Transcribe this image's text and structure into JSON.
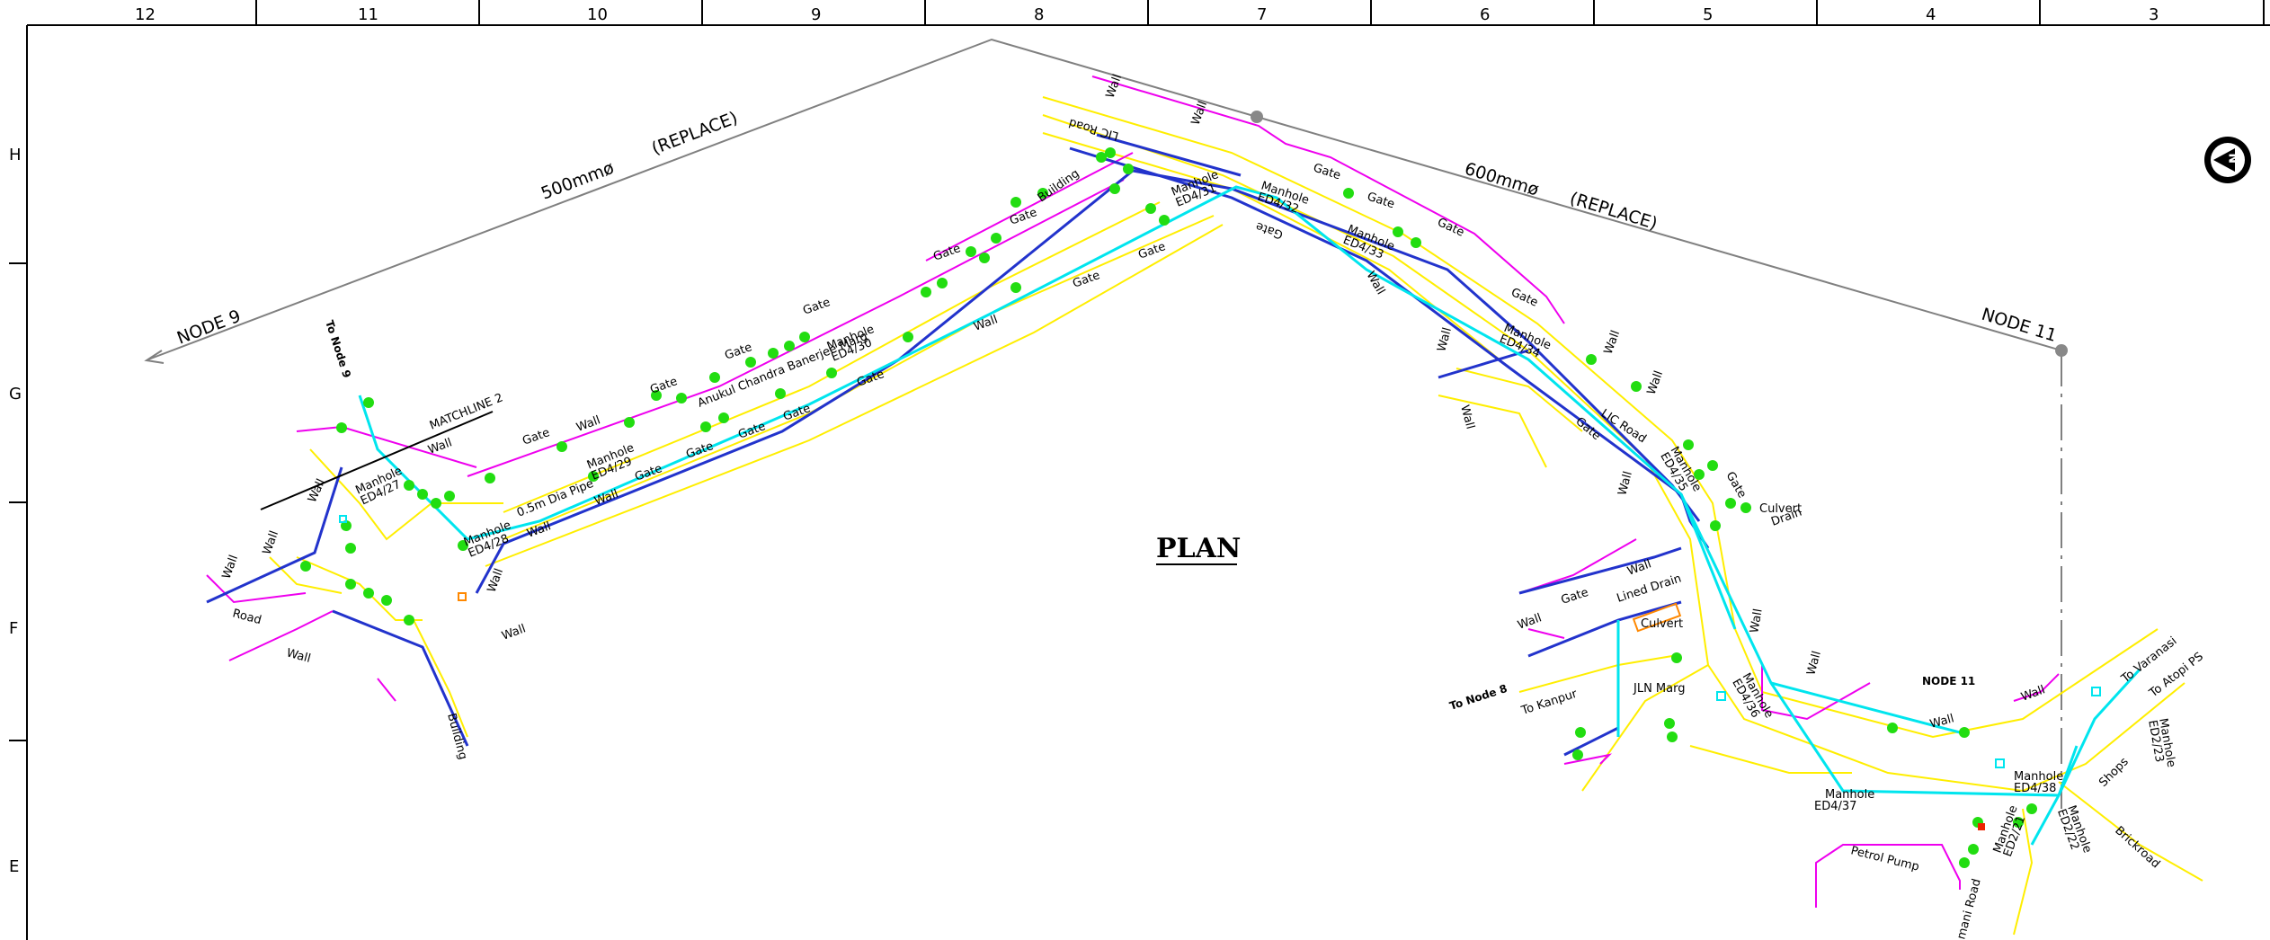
{
  "title": "PLAN",
  "grid": {
    "columns": [
      "12",
      "11",
      "10",
      "9",
      "8",
      "7",
      "6",
      "5",
      "4",
      "3"
    ],
    "rows": [
      "H",
      "G",
      "F",
      "E"
    ]
  },
  "pipes": {
    "left": {
      "dia": "500mmø",
      "note": "(REPLACE)",
      "node": "NODE 9"
    },
    "right": {
      "dia": "600mmø",
      "note": "(REPLACE)",
      "node": "NODE 11"
    }
  },
  "labels": {
    "to_node9": "To Node 9",
    "to_node8": "To Node 8",
    "matchline": "MATCHLINE 2",
    "lic_road": "LIC Road",
    "lic_road_top": "LIC Road",
    "road_name": "Anukul Chandra Banerjee Marg",
    "jln_marg": "JLN Marg",
    "to_kanpur": "To Kanpur",
    "to_varanasi": "To Varanasi",
    "to_atopi": "To Atopi PS",
    "node11_mid": "NODE 11",
    "petrol_pump": "Petrol Pump",
    "shops": "Shops",
    "brickroad": "Brickroad",
    "culvert": "Culvert",
    "culvert2": "Culvert",
    "lined_drain": "Lined Drain",
    "drain": "Drain",
    "road": "Road",
    "dia_pipe": "0.5m Dia Pipe",
    "mani_road": "mani Road",
    "building": "Building",
    "building2": "Building"
  },
  "manholes": {
    "m27": [
      "Manhole",
      "ED4/27"
    ],
    "m28": [
      "Manhole",
      "ED4/28"
    ],
    "m29": [
      "Manhole",
      "ED4/29"
    ],
    "m30": [
      "Manhole",
      "ED4/30"
    ],
    "m31": [
      "Manhole",
      "ED4/31"
    ],
    "m32": [
      "Manhole",
      "ED4/32"
    ],
    "m33": [
      "Manhole",
      "ED4/33"
    ],
    "m34": [
      "Manhole",
      "ED4/34"
    ],
    "m35": [
      "Manhole",
      "ED4/35"
    ],
    "m36": [
      "Manhole",
      "ED4/36"
    ],
    "m37": [
      "Manhole",
      "ED4/37"
    ],
    "m38": [
      "Manhole",
      "ED4/38"
    ],
    "m21": [
      "Manhole",
      "ED2/21"
    ],
    "m22": [
      "Manhole",
      "ED2/22"
    ],
    "m23": [
      "Manhole",
      "ED2/23"
    ]
  },
  "small": {
    "wall": "Wall",
    "gate": "Gate"
  },
  "north_arrow": "N",
  "colors": {
    "sewer": "#00e5ee",
    "road_edge": "#ffee00",
    "boundary_wall": "#ee00ee",
    "drain": "#2233cc",
    "tree": "#22dd11",
    "pipe_line": "#808080"
  }
}
